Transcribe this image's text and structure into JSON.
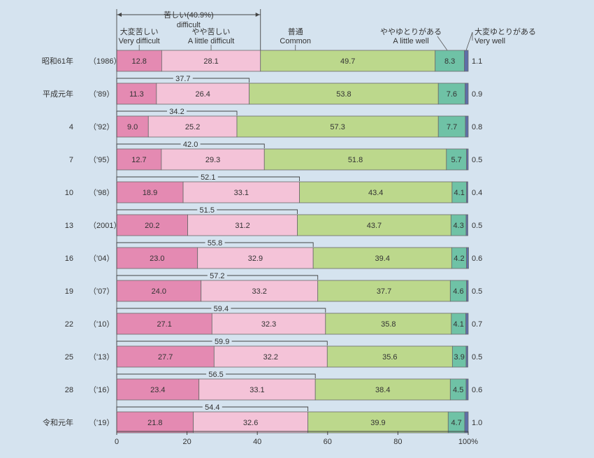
{
  "chart_data": {
    "type": "bar",
    "orientation": "horizontal",
    "stacked": true,
    "percent_stacked": true,
    "legend": {
      "group_label": "苦しい(40.9%)",
      "group_label_en": "difficult",
      "headers": [
        {
          "jp": "大変苦しい",
          "en": "Very difficult"
        },
        {
          "jp": "やや苦しい",
          "en": "A little difficult"
        },
        {
          "jp": "普通",
          "en": "Common"
        },
        {
          "jp": "ややゆとりがある",
          "en": "A little well"
        },
        {
          "jp": "大変ゆとりがある",
          "en": "Very well"
        }
      ]
    },
    "categories": [
      {
        "era": "昭和61年",
        "year": "（1986）"
      },
      {
        "era": "平成元年",
        "year": "（'89）"
      },
      {
        "era": "4",
        "year": "（'92）"
      },
      {
        "era": "7",
        "year": "（'95）"
      },
      {
        "era": "10",
        "year": "（'98）"
      },
      {
        "era": "13",
        "year": "（2001）"
      },
      {
        "era": "16",
        "year": "（'04）"
      },
      {
        "era": "19",
        "year": "（'07）"
      },
      {
        "era": "22",
        "year": "（'10）"
      },
      {
        "era": "25",
        "year": "（'13）"
      },
      {
        "era": "28",
        "year": "（'16）"
      },
      {
        "era": "令和元年",
        "year": "（'19）"
      }
    ],
    "series": [
      {
        "color": "#e48ab2",
        "values": [
          12.8,
          11.3,
          9.0,
          12.7,
          18.9,
          20.2,
          23.0,
          24.0,
          27.1,
          27.7,
          23.4,
          21.8
        ]
      },
      {
        "color": "#f4c3d8",
        "values": [
          28.1,
          26.4,
          25.2,
          29.3,
          33.1,
          31.2,
          32.9,
          33.2,
          32.3,
          32.2,
          33.1,
          32.6
        ]
      },
      {
        "color": "#bcd88c",
        "values": [
          49.7,
          53.8,
          57.3,
          51.8,
          43.4,
          43.7,
          39.4,
          37.7,
          35.8,
          35.6,
          38.4,
          39.9
        ]
      },
      {
        "color": "#6fc2a6",
        "values": [
          8.3,
          7.6,
          7.7,
          5.7,
          4.1,
          4.3,
          4.2,
          4.6,
          4.1,
          3.9,
          4.5,
          4.7
        ]
      },
      {
        "color": "#5d6fa8",
        "values": [
          1.1,
          0.9,
          0.8,
          0.5,
          0.4,
          0.5,
          0.6,
          0.5,
          0.7,
          0.5,
          0.6,
          1.0
        ]
      }
    ],
    "difficult_totals": [
      "40.9%",
      "37.7",
      "34.2",
      "42.0",
      "52.1",
      "51.5",
      "55.8",
      "57.2",
      "59.4",
      "59.9",
      "56.5",
      "54.4"
    ],
    "xlim": [
      0,
      100
    ],
    "xticks": [
      "0",
      "20",
      "40",
      "60",
      "80",
      "100%"
    ],
    "grid": false
  }
}
